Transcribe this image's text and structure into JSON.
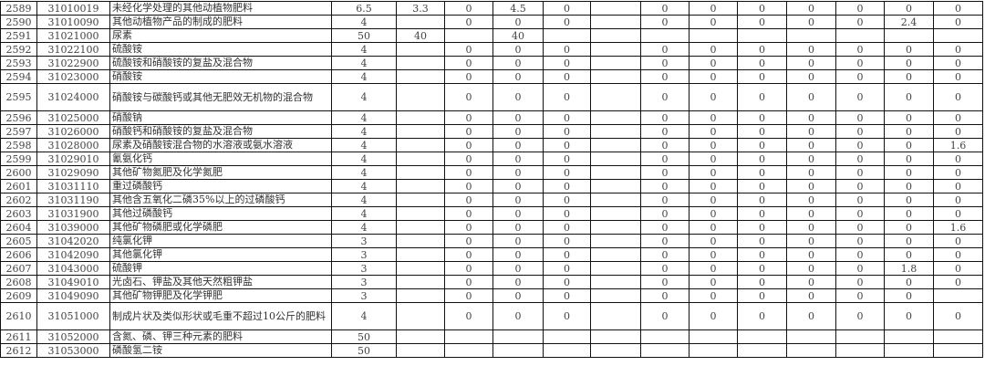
{
  "table": {
    "rows": [
      {
        "no": "2589",
        "code": "31010019",
        "name": "未经化学处理的其他动植物肥料",
        "v": [
          "6.5",
          "3.3",
          "0",
          "4.5",
          "0",
          "",
          "0",
          "0",
          "0",
          "0",
          "0",
          "0",
          "0"
        ]
      },
      {
        "no": "2590",
        "code": "31010090",
        "name": "其他动植物产品的制成的肥料",
        "v": [
          "4",
          "",
          "0",
          "0",
          "0",
          "",
          "0",
          "0",
          "0",
          "0",
          "0",
          "2.4",
          "0"
        ]
      },
      {
        "no": "2591",
        "code": "31021000",
        "name": "尿素",
        "v": [
          "50",
          "40",
          "",
          "40",
          "",
          "",
          "",
          "",
          "",
          "",
          "",
          "",
          ""
        ]
      },
      {
        "no": "2592",
        "code": "31022100",
        "name": "硫酸铵",
        "v": [
          "4",
          "",
          "0",
          "0",
          "0",
          "",
          "0",
          "0",
          "0",
          "0",
          "0",
          "0",
          "0"
        ]
      },
      {
        "no": "2593",
        "code": "31022900",
        "name": "硫酸铵和硝酸铵的复盐及混合物",
        "v": [
          "4",
          "",
          "0",
          "0",
          "0",
          "",
          "0",
          "0",
          "0",
          "0",
          "0",
          "0",
          "0"
        ]
      },
      {
        "no": "2594",
        "code": "31023000",
        "name": "硝酸铵",
        "v": [
          "4",
          "",
          "0",
          "0",
          "0",
          "",
          "0",
          "0",
          "0",
          "0",
          "0",
          "0",
          "0"
        ]
      },
      {
        "no": "2595",
        "code": "31024000",
        "name": "硝酸铵与碳酸钙或其他无肥效无机物的混合物",
        "v": [
          "4",
          "",
          "0",
          "0",
          "0",
          "",
          "0",
          "0",
          "0",
          "0",
          "0",
          "0",
          "0"
        ],
        "tall": true
      },
      {
        "no": "2596",
        "code": "31025000",
        "name": "硝酸钠",
        "v": [
          "4",
          "",
          "0",
          "0",
          "0",
          "",
          "0",
          "0",
          "0",
          "0",
          "0",
          "0",
          "0"
        ]
      },
      {
        "no": "2597",
        "code": "31026000",
        "name": "硝酸钙和硝酸铵的复盐及混合物",
        "v": [
          "4",
          "",
          "0",
          "0",
          "0",
          "",
          "0",
          "0",
          "0",
          "0",
          "0",
          "0",
          "0"
        ]
      },
      {
        "no": "2598",
        "code": "31028000",
        "name": "尿素及硝酸铵混合物的水溶液或氨水溶液",
        "v": [
          "4",
          "",
          "0",
          "0",
          "0",
          "",
          "0",
          "0",
          "0",
          "0",
          "0",
          "0",
          "1.6"
        ]
      },
      {
        "no": "2599",
        "code": "31029010",
        "name": "氰氨化钙",
        "v": [
          "4",
          "",
          "0",
          "0",
          "0",
          "",
          "0",
          "0",
          "0",
          "0",
          "0",
          "0",
          "0"
        ]
      },
      {
        "no": "2600",
        "code": "31029090",
        "name": "其他矿物氮肥及化学氮肥",
        "v": [
          "4",
          "",
          "0",
          "0",
          "0",
          "",
          "0",
          "0",
          "0",
          "0",
          "0",
          "0",
          "0"
        ]
      },
      {
        "no": "2601",
        "code": "31031110",
        "name": "重过磷酸钙",
        "v": [
          "4",
          "",
          "0",
          "0",
          "0",
          "",
          "0",
          "0",
          "0",
          "0",
          "0",
          "0",
          "0"
        ]
      },
      {
        "no": "2602",
        "code": "31031190",
        "name": "其他含五氧化二磷35%以上的过磷酸钙",
        "v": [
          "4",
          "",
          "0",
          "0",
          "0",
          "",
          "0",
          "0",
          "0",
          "0",
          "0",
          "0",
          "0"
        ]
      },
      {
        "no": "2603",
        "code": "31031900",
        "name": "其他过磷酸钙",
        "v": [
          "4",
          "",
          "0",
          "0",
          "0",
          "",
          "0",
          "0",
          "0",
          "0",
          "0",
          "0",
          "0"
        ]
      },
      {
        "no": "2604",
        "code": "31039000",
        "name": "其他矿物磷肥或化学磷肥",
        "v": [
          "4",
          "",
          "0",
          "0",
          "0",
          "",
          "0",
          "0",
          "0",
          "0",
          "0",
          "0",
          "1.6"
        ]
      },
      {
        "no": "2605",
        "code": "31042020",
        "name": "纯氯化钾",
        "v": [
          "3",
          "",
          "0",
          "0",
          "0",
          "",
          "0",
          "0",
          "0",
          "0",
          "0",
          "0",
          "0"
        ]
      },
      {
        "no": "2606",
        "code": "31042090",
        "name": "其他氯化钾",
        "v": [
          "3",
          "",
          "0",
          "0",
          "0",
          "",
          "0",
          "0",
          "0",
          "0",
          "0",
          "0",
          "0"
        ]
      },
      {
        "no": "2607",
        "code": "31043000",
        "name": "硫酸钾",
        "v": [
          "3",
          "",
          "0",
          "0",
          "0",
          "",
          "0",
          "0",
          "0",
          "0",
          "0",
          "1.8",
          "0"
        ]
      },
      {
        "no": "2608",
        "code": "31049010",
        "name": "光卤石、钾盐及其他天然粗钾盐",
        "v": [
          "3",
          "",
          "0",
          "0",
          "0",
          "",
          "0",
          "0",
          "0",
          "0",
          "0",
          "0",
          "0"
        ]
      },
      {
        "no": "2609",
        "code": "31049090",
        "name": "其他矿物钾肥及化学钾肥",
        "v": [
          "3",
          "",
          "0",
          "0",
          "0",
          "",
          "0",
          "0",
          "0",
          "0",
          "0",
          "0",
          ""
        ]
      },
      {
        "no": "2610",
        "code": "31051000",
        "name": "制成片状及类似形状或毛重不超过10公斤的肥料",
        "v": [
          "4",
          "",
          "0",
          "0",
          "0",
          "",
          "0",
          "0",
          "0",
          "0",
          "0",
          "0",
          "0"
        ],
        "tall": true
      },
      {
        "no": "2611",
        "code": "31052000",
        "name": "含氮、磷、钾三种元素的肥料",
        "v": [
          "50",
          "",
          "",
          "",
          "",
          "",
          "",
          "",
          "",
          "",
          "",
          "",
          ""
        ]
      },
      {
        "no": "2612",
        "code": "31053000",
        "name": "磷酸氢二铵",
        "v": [
          "50",
          "",
          "",
          "",
          "",
          "",
          "",
          "",
          "",
          "",
          "",
          "",
          ""
        ]
      }
    ]
  }
}
